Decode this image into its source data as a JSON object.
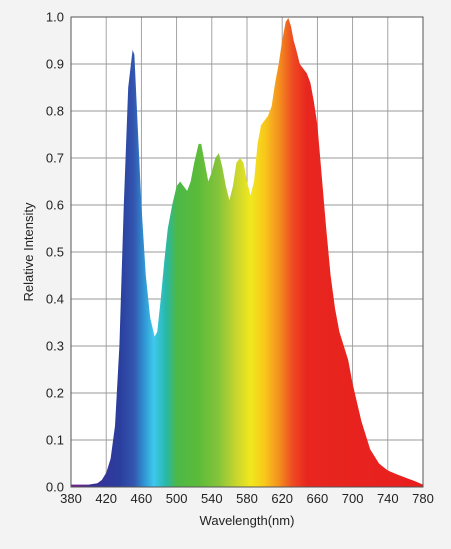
{
  "chart_data": {
    "type": "area",
    "title": "",
    "xlabel": "Wavelength(nm)",
    "ylabel": "Relative Intensity",
    "xlim": [
      380,
      780
    ],
    "ylim": [
      0,
      1.0
    ],
    "grid": true,
    "x_ticks": [
      "380",
      "420",
      "460",
      "500",
      "540",
      "580",
      "620",
      "660",
      "700",
      "740",
      "780"
    ],
    "y_ticks": [
      "0.0",
      "0.1",
      "0.2",
      "0.3",
      "0.4",
      "0.5",
      "0.6",
      "0.7",
      "0.8",
      "0.9",
      "1.0"
    ],
    "fill": "wavelength rainbow gradient (violet-blue-cyan-green-yellow-orange-red)",
    "series": [
      {
        "x": [
          380,
          400,
          410,
          415,
          420,
          425,
          430,
          435,
          440,
          445,
          450,
          452,
          455,
          460,
          465,
          470,
          475,
          478,
          482,
          486,
          490,
          495,
          500,
          504,
          508,
          512,
          516,
          520,
          525,
          528,
          532,
          536,
          540,
          544,
          548,
          552,
          556,
          560,
          564,
          568,
          572,
          576,
          580,
          584,
          588,
          592,
          596,
          600,
          604,
          608,
          612,
          616,
          620,
          624,
          627,
          630,
          633,
          636,
          640,
          644,
          648,
          652,
          656,
          660,
          665,
          670,
          675,
          680,
          685,
          690,
          695,
          700,
          710,
          720,
          730,
          740,
          750,
          760,
          770,
          780
        ],
        "y": [
          0.005,
          0.005,
          0.008,
          0.015,
          0.03,
          0.06,
          0.13,
          0.3,
          0.6,
          0.85,
          0.93,
          0.92,
          0.8,
          0.6,
          0.45,
          0.36,
          0.32,
          0.33,
          0.4,
          0.48,
          0.55,
          0.6,
          0.64,
          0.65,
          0.64,
          0.63,
          0.65,
          0.69,
          0.73,
          0.73,
          0.69,
          0.65,
          0.67,
          0.7,
          0.71,
          0.68,
          0.64,
          0.61,
          0.64,
          0.69,
          0.7,
          0.69,
          0.65,
          0.62,
          0.65,
          0.73,
          0.77,
          0.78,
          0.79,
          0.81,
          0.86,
          0.9,
          0.95,
          0.99,
          0.998,
          0.98,
          0.95,
          0.93,
          0.9,
          0.89,
          0.88,
          0.86,
          0.82,
          0.77,
          0.66,
          0.55,
          0.45,
          0.38,
          0.33,
          0.3,
          0.27,
          0.22,
          0.14,
          0.08,
          0.05,
          0.035,
          0.027,
          0.02,
          0.013,
          0.005
        ]
      }
    ]
  }
}
